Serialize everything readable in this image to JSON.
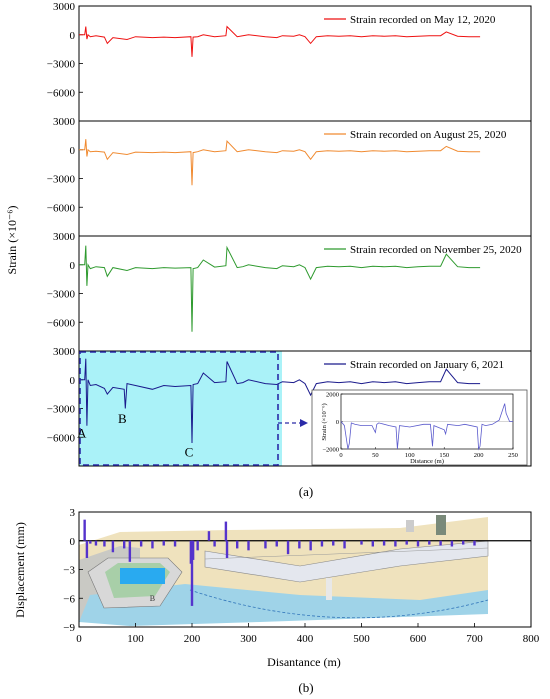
{
  "figure": {
    "label_a": "(a)",
    "label_b": "(b)"
  },
  "chart_data": [
    {
      "id": "a",
      "type": "line",
      "ylabel": "Strain (×10⁻⁶)",
      "ylim": [
        -9000,
        3000
      ],
      "yticks": [
        3000,
        0,
        -3000,
        -6000
      ],
      "xlim": [
        0,
        800
      ],
      "grid": false,
      "legend_position": "top-right",
      "series": [
        {
          "name": "Strain recorded on May 12, 2020",
          "color": "#ee1111",
          "x": [
            0,
            10,
            12,
            14,
            16,
            20,
            30,
            45,
            50,
            60,
            85,
            100,
            130,
            150,
            170,
            198,
            200,
            202,
            210,
            220,
            240,
            260,
            262,
            280,
            290,
            300,
            330,
            350,
            360,
            380,
            390,
            400,
            410,
            420,
            440,
            460,
            480,
            500,
            520,
            540,
            560,
            580,
            600,
            620,
            640,
            650,
            670,
            690,
            710
          ],
          "y": [
            0,
            0,
            850,
            -450,
            0,
            -200,
            -100,
            -250,
            -900,
            -300,
            -500,
            -200,
            -300,
            -250,
            -300,
            -200,
            -2300,
            -250,
            -200,
            0,
            -200,
            -100,
            850,
            -200,
            -100,
            0,
            -200,
            -300,
            -100,
            -150,
            0,
            -200,
            -900,
            -200,
            -100,
            -150,
            -100,
            -200,
            -100,
            -150,
            -100,
            -200,
            -150,
            -100,
            -100,
            300,
            -150,
            -200,
            -200
          ]
        },
        {
          "name": "Strain recorded on August 25, 2020",
          "color": "#f08a30",
          "x": [
            0,
            10,
            12,
            14,
            16,
            20,
            30,
            45,
            50,
            60,
            85,
            100,
            130,
            150,
            170,
            198,
            200,
            202,
            210,
            220,
            240,
            260,
            262,
            280,
            290,
            300,
            330,
            350,
            360,
            380,
            390,
            400,
            410,
            420,
            440,
            460,
            480,
            500,
            520,
            540,
            560,
            580,
            600,
            620,
            640,
            650,
            670,
            690,
            710
          ],
          "y": [
            0,
            0,
            1100,
            -700,
            0,
            -200,
            -150,
            -250,
            -1000,
            -300,
            -500,
            -250,
            -300,
            -250,
            -300,
            -200,
            -3700,
            -300,
            -200,
            0,
            -200,
            -100,
            900,
            -200,
            -100,
            0,
            -200,
            -300,
            -100,
            -150,
            0,
            -200,
            -1000,
            -200,
            -100,
            -150,
            -100,
            -200,
            -100,
            -150,
            -100,
            -200,
            -150,
            -100,
            -100,
            350,
            -150,
            -200,
            -200
          ]
        },
        {
          "name": "Strain recorded on November 25, 2020",
          "color": "#2e9a2e",
          "x": [
            0,
            10,
            12,
            14,
            16,
            20,
            30,
            45,
            50,
            60,
            85,
            100,
            130,
            150,
            170,
            198,
            200,
            202,
            210,
            220,
            240,
            260,
            262,
            280,
            290,
            300,
            330,
            350,
            360,
            380,
            390,
            400,
            410,
            420,
            440,
            460,
            480,
            500,
            520,
            540,
            560,
            580,
            600,
            620,
            640,
            650,
            670,
            690,
            710
          ],
          "y": [
            0,
            0,
            2000,
            -2200,
            0,
            -400,
            -200,
            -300,
            -1200,
            -300,
            -600,
            -300,
            -400,
            -300,
            -350,
            -300,
            -7000,
            -400,
            -300,
            500,
            -250,
            -100,
            1800,
            -300,
            -200,
            0,
            -300,
            -400,
            -100,
            -200,
            0,
            -300,
            -1500,
            -300,
            -150,
            -200,
            -150,
            -300,
            -150,
            -200,
            -150,
            -300,
            -200,
            -150,
            -150,
            1100,
            -200,
            -300,
            -300
          ]
        },
        {
          "name": "Strain recorded on January 6, 2021",
          "color": "#1a1a8c",
          "x": [
            0,
            10,
            12,
            14,
            16,
            20,
            30,
            45,
            50,
            60,
            80,
            82,
            85,
            100,
            130,
            150,
            170,
            198,
            200,
            202,
            210,
            220,
            240,
            260,
            262,
            280,
            290,
            300,
            330,
            350,
            360,
            380,
            390,
            400,
            410,
            420,
            440,
            460,
            480,
            500,
            520,
            540,
            560,
            580,
            600,
            620,
            640,
            650,
            670,
            690,
            710
          ],
          "y": [
            0,
            0,
            2200,
            -4800,
            0,
            -600,
            -500,
            -900,
            -1500,
            -800,
            -1000,
            -3000,
            -400,
            -600,
            -1000,
            -600,
            -700,
            -600,
            -6600,
            -500,
            -400,
            700,
            -300,
            -200,
            1900,
            -400,
            -300,
            0,
            -400,
            -500,
            -200,
            -300,
            0,
            -400,
            -1600,
            -400,
            -200,
            -300,
            -200,
            -400,
            -200,
            -300,
            -200,
            -400,
            -300,
            -200,
            -200,
            1100,
            -300,
            -400,
            -400
          ]
        }
      ],
      "annotations": [
        {
          "text": "A",
          "x": 10,
          "y": -6000
        },
        {
          "text": "B",
          "x": 82,
          "y": -4500
        },
        {
          "text": "C",
          "x": 200,
          "y": -8000
        }
      ],
      "highlight": {
        "x_range": [
          0,
          350
        ],
        "y_range": [
          -9000,
          3000
        ],
        "color": "#aaf2f8"
      },
      "inset": {
        "ylabel": "Strain (×10⁻⁶)",
        "xlabel": "Distance (m)",
        "ylim": [
          -2000,
          2000
        ],
        "yticks": [
          2000,
          0,
          -2000
        ],
        "xlim": [
          0,
          250
        ],
        "xticks": [
          0,
          50,
          100,
          150,
          200,
          250
        ],
        "color": "#5a5acc",
        "x": [
          0,
          5,
          10,
          12,
          15,
          20,
          30,
          45,
          50,
          52,
          55,
          70,
          80,
          82,
          85,
          100,
          120,
          130,
          133,
          135,
          150,
          152,
          155,
          170,
          180,
          198,
          200,
          202,
          205,
          210,
          220,
          230,
          238,
          240,
          245,
          250
        ],
        "y": [
          0,
          -300,
          -2000,
          -1600,
          -100,
          -200,
          -300,
          -300,
          -800,
          -200,
          -100,
          -300,
          -400,
          -2000,
          -300,
          -400,
          -200,
          -200,
          -1800,
          -300,
          -600,
          -900,
          -200,
          -300,
          -200,
          -400,
          -2000,
          -1800,
          -200,
          -300,
          -200,
          100,
          1300,
          600,
          0,
          0
        ]
      }
    },
    {
      "id": "b",
      "type": "bar",
      "ylabel": "Displacement (mm)",
      "xlabel": "Disantance (m)",
      "ylim": [
        -9,
        3
      ],
      "yticks": [
        3,
        0,
        -3,
        -6,
        -9
      ],
      "xlim": [
        0,
        800
      ],
      "xticks": [
        0,
        100,
        200,
        300,
        400,
        500,
        600,
        700,
        800
      ],
      "color": "#5533cc",
      "grid": false,
      "annotations": [
        {
          "text": "B",
          "x": 130,
          "y": -6.3
        }
      ],
      "x": [
        10,
        14,
        20,
        30,
        45,
        60,
        80,
        90,
        110,
        130,
        150,
        170,
        198,
        200,
        202,
        210,
        230,
        240,
        260,
        262,
        280,
        300,
        330,
        350,
        370,
        390,
        410,
        430,
        450,
        470,
        500,
        520,
        540,
        560,
        580,
        600,
        620,
        640,
        660,
        680,
        700
      ],
      "y": [
        2.2,
        -1.8,
        -0.3,
        -0.5,
        -0.6,
        -1.2,
        -0.8,
        -2.2,
        -0.6,
        -0.8,
        -0.5,
        -0.6,
        -2.4,
        -6.8,
        -2.0,
        -1.0,
        1.0,
        -0.6,
        2.0,
        -1.8,
        -0.8,
        -1.0,
        -0.8,
        -0.6,
        -1.4,
        -0.8,
        -1.0,
        -0.6,
        -0.5,
        -0.8,
        -0.4,
        -0.6,
        -0.5,
        -0.6,
        -0.4,
        -0.6,
        -0.4,
        -0.5,
        -0.6,
        -0.4,
        -0.5
      ]
    }
  ]
}
